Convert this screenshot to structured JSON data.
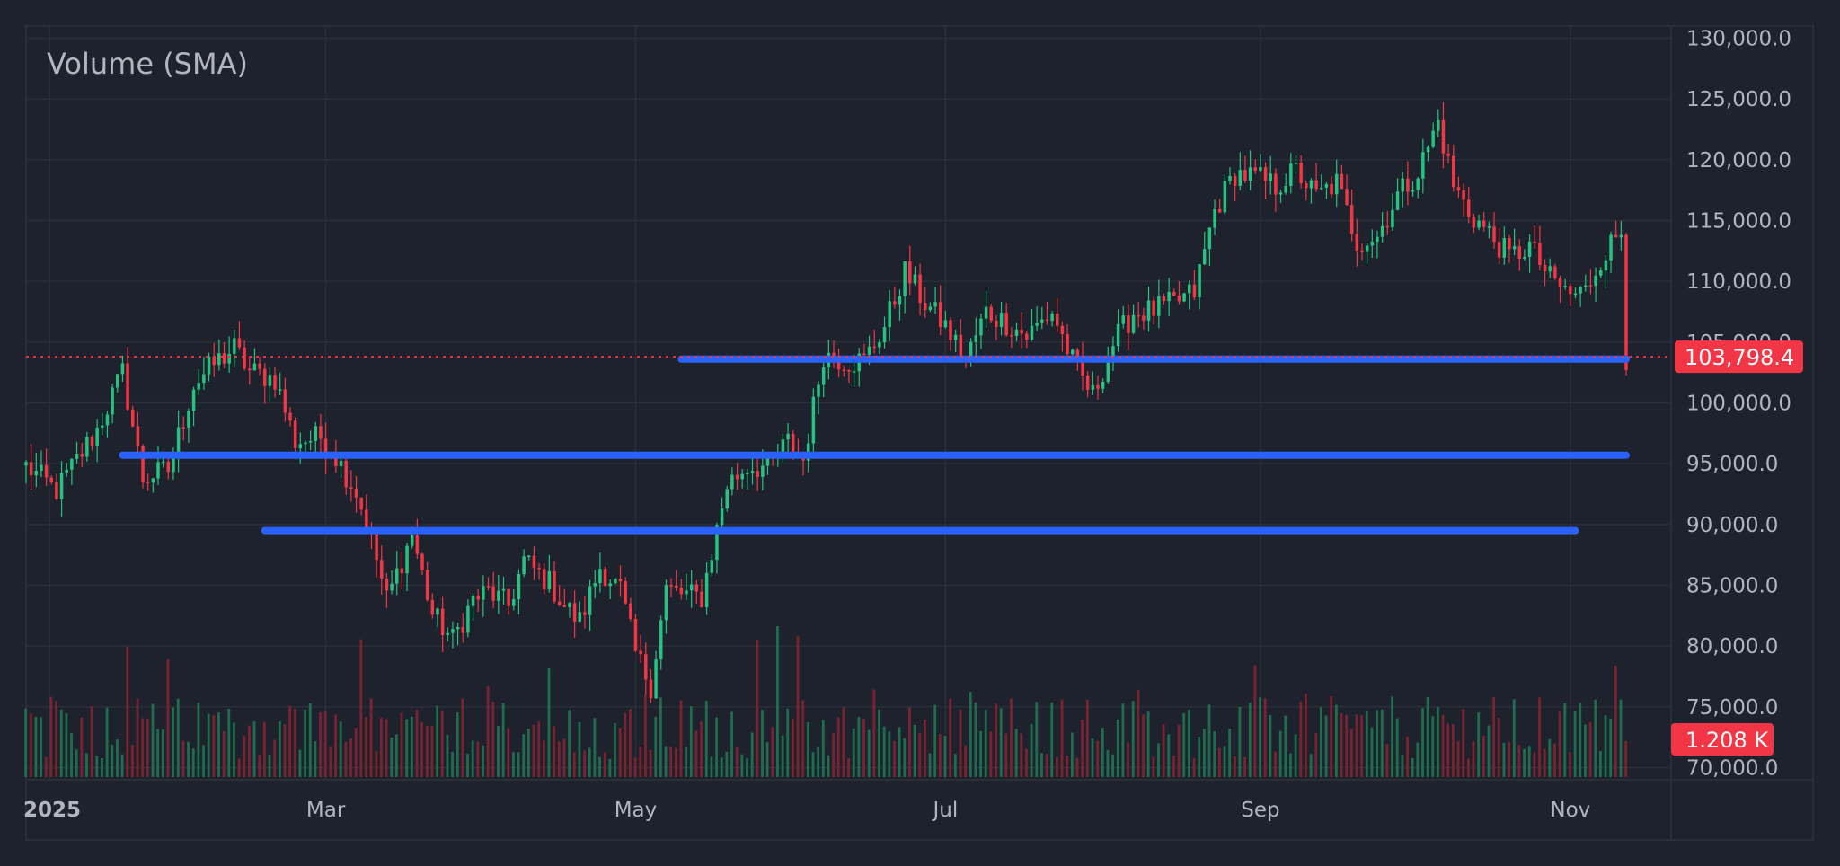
{
  "legend": {
    "label": "Volume (SMA)"
  },
  "colors": {
    "background": "#1e222d",
    "grid": "#2a2e39",
    "up": "#26c281",
    "down": "#f23645",
    "up_volume": "#1f7a55",
    "down_volume": "#8b2232",
    "line": "#2962ff",
    "axis_text": "#b2b5be"
  },
  "chart_data": {
    "type": "candlestick",
    "title": "",
    "legend_label": "Volume (SMA)",
    "x_range": [
      "2025-01-01",
      "2025-11-12"
    ],
    "y_range": [
      69000,
      131000
    ],
    "x_ticks": [
      {
        "label": "2025",
        "date": "2025-01-01",
        "bold": true
      },
      {
        "label": "Mar",
        "date": "2025-03-01"
      },
      {
        "label": "May",
        "date": "2025-05-01"
      },
      {
        "label": "Jul",
        "date": "2025-07-01"
      },
      {
        "label": "Sep",
        "date": "2025-09-01"
      },
      {
        "label": "Nov",
        "date": "2025-11-01"
      }
    ],
    "y_ticks": [
      "130,000.0",
      "125,000.0",
      "120,000.0",
      "115,000.0",
      "110,000.0",
      "105,000.0",
      "100,000.0",
      "95,000.0",
      "90,000.0",
      "85,000.0",
      "80,000.0",
      "75,000.0",
      "70,000.0"
    ],
    "last_price": {
      "label": "103,798.4",
      "value": 103798.4
    },
    "last_volume": {
      "label": "1.208 K"
    },
    "horizontal_lines": [
      {
        "from": "2025-05-10",
        "to": "2025-11-12",
        "value": 103600
      },
      {
        "from": "2025-01-20",
        "to": "2025-11-12",
        "value": 95700
      },
      {
        "from": "2025-02-17",
        "to": "2025-11-02",
        "value": 89500
      }
    ],
    "price_path": [
      [
        "2025-01-01",
        94800
      ],
      [
        "2025-01-07",
        92800
      ],
      [
        "2025-01-15",
        97800
      ],
      [
        "2025-01-20",
        102500
      ],
      [
        "2025-01-24",
        93800
      ],
      [
        "2025-01-29",
        94500
      ],
      [
        "2025-02-03",
        101500
      ],
      [
        "2025-02-07",
        103200
      ],
      [
        "2025-02-11",
        104500
      ],
      [
        "2025-02-14",
        102600
      ],
      [
        "2025-02-19",
        102000
      ],
      [
        "2025-02-23",
        96800
      ],
      [
        "2025-02-28",
        97200
      ],
      [
        "2025-03-03",
        95600
      ],
      [
        "2025-03-07",
        92700
      ],
      [
        "2025-03-10",
        88800
      ],
      [
        "2025-03-13",
        83800
      ],
      [
        "2025-03-18",
        89200
      ],
      [
        "2025-03-22",
        82600
      ],
      [
        "2025-03-26",
        80500
      ],
      [
        "2025-03-30",
        83800
      ],
      [
        "2025-04-02",
        84500
      ],
      [
        "2025-04-06",
        83300
      ],
      [
        "2025-04-09",
        87000
      ],
      [
        "2025-04-14",
        85200
      ],
      [
        "2025-04-17",
        83300
      ],
      [
        "2025-04-20",
        82000
      ],
      [
        "2025-04-24",
        86500
      ],
      [
        "2025-04-28",
        84600
      ],
      [
        "2025-05-01",
        79400
      ],
      [
        "2025-05-04",
        76800
      ],
      [
        "2025-05-07",
        84700
      ],
      [
        "2025-05-10",
        84300
      ],
      [
        "2025-05-14",
        84000
      ],
      [
        "2025-05-19",
        93300
      ],
      [
        "2025-05-23",
        94800
      ],
      [
        "2025-05-27",
        94700
      ],
      [
        "2025-05-31",
        96800
      ],
      [
        "2025-06-03",
        95300
      ],
      [
        "2025-06-07",
        104000
      ],
      [
        "2025-06-12",
        103400
      ],
      [
        "2025-06-15",
        103500
      ],
      [
        "2025-06-19",
        106300
      ],
      [
        "2025-06-23",
        110800
      ],
      [
        "2025-06-27",
        108200
      ],
      [
        "2025-07-01",
        106300
      ],
      [
        "2025-07-05",
        103500
      ],
      [
        "2025-07-09",
        107500
      ],
      [
        "2025-07-13",
        106600
      ],
      [
        "2025-07-17",
        105500
      ],
      [
        "2025-07-22",
        107500
      ],
      [
        "2025-07-26",
        103400
      ],
      [
        "2025-07-30",
        100600
      ],
      [
        "2025-08-03",
        104900
      ],
      [
        "2025-08-07",
        107400
      ],
      [
        "2025-08-11",
        107600
      ],
      [
        "2025-08-15",
        108200
      ],
      [
        "2025-08-19",
        109100
      ],
      [
        "2025-08-23",
        115800
      ],
      [
        "2025-08-27",
        118900
      ],
      [
        "2025-08-31",
        118600
      ],
      [
        "2025-09-04",
        117800
      ],
      [
        "2025-09-08",
        119100
      ],
      [
        "2025-09-12",
        117000
      ],
      [
        "2025-09-16",
        118100
      ],
      [
        "2025-09-20",
        113300
      ],
      [
        "2025-09-24",
        113700
      ],
      [
        "2025-09-28",
        117100
      ],
      [
        "2025-10-02",
        119000
      ],
      [
        "2025-10-06",
        123100
      ],
      [
        "2025-10-09",
        117900
      ],
      [
        "2025-10-12",
        115700
      ],
      [
        "2025-10-16",
        113900
      ],
      [
        "2025-10-20",
        112000
      ],
      [
        "2025-10-24",
        112900
      ],
      [
        "2025-10-28",
        110200
      ],
      [
        "2025-11-01",
        108900
      ],
      [
        "2025-11-04",
        109200
      ],
      [
        "2025-11-07",
        111900
      ],
      [
        "2025-11-11",
        114200
      ],
      [
        "2025-11-12",
        103798
      ]
    ]
  }
}
